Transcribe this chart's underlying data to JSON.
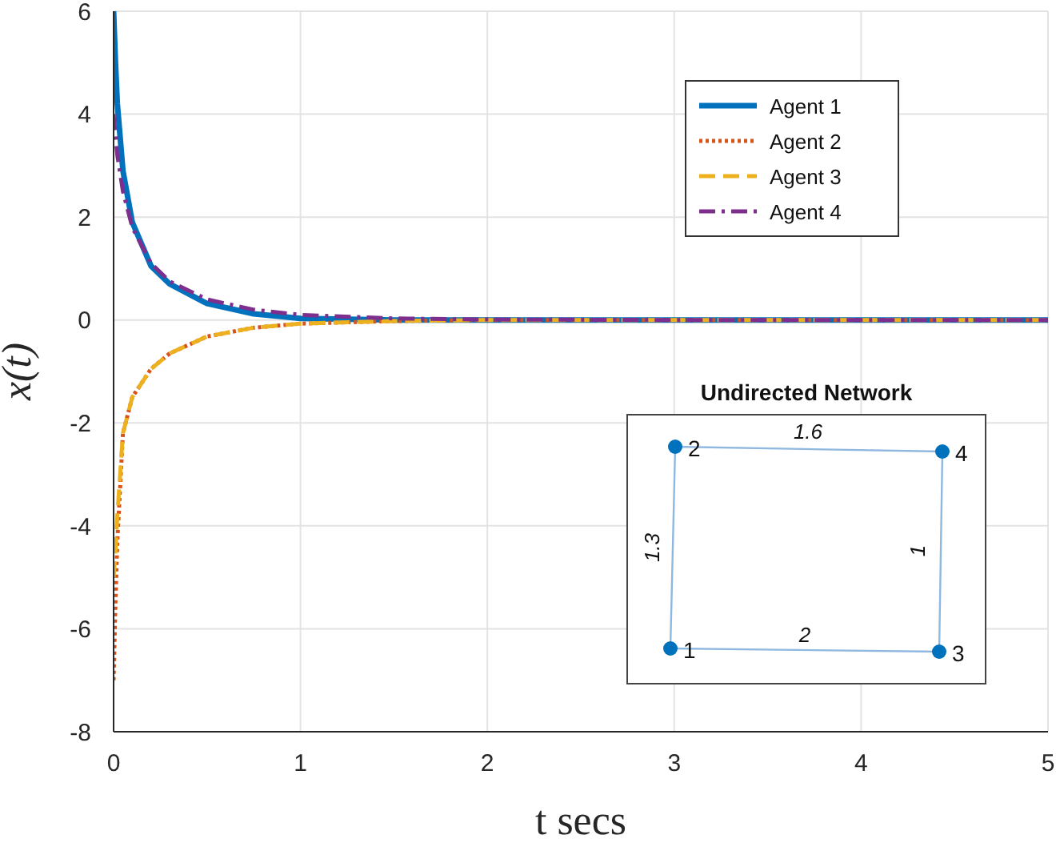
{
  "chart_data": {
    "type": "line",
    "xlabel": "t secs",
    "ylabel": "x(t)",
    "x": [
      0,
      0.01,
      0.02,
      0.05,
      0.1,
      0.2,
      0.3,
      0.5,
      0.75,
      1,
      1.5,
      2,
      3,
      4,
      5
    ],
    "series": [
      {
        "name": "Agent 1",
        "color": "#0072bd",
        "line_style": "solid",
        "values": [
          6,
          5.0,
          4.2,
          2.9,
          1.9,
          1.05,
          0.7,
          0.32,
          0.12,
          0.03,
          0,
          0,
          0,
          0,
          0
        ]
      },
      {
        "name": "Agent 2",
        "color": "#d95319",
        "line_style": "dotted",
        "values": [
          -7,
          -5.5,
          -4.3,
          -2.2,
          -1.5,
          -0.95,
          -0.65,
          -0.32,
          -0.15,
          -0.07,
          -0.02,
          0,
          0,
          0,
          0
        ]
      },
      {
        "name": "Agent 3",
        "color": "#edb120",
        "line_style": "dashed",
        "values": [
          -5,
          -4.5,
          -3.8,
          -2.2,
          -1.5,
          -0.95,
          -0.65,
          -0.32,
          -0.15,
          -0.07,
          -0.02,
          0,
          0,
          0,
          0
        ]
      },
      {
        "name": "Agent 4",
        "color": "#7e2f8e",
        "line_style": "dashdot",
        "values": [
          4,
          3.6,
          3.2,
          2.5,
          1.8,
          1.1,
          0.75,
          0.4,
          0.2,
          0.1,
          0.03,
          0.01,
          0,
          0,
          0
        ]
      }
    ],
    "xlim": [
      0,
      5
    ],
    "xticks": [
      0,
      1,
      2,
      3,
      4,
      5
    ],
    "ylim": [
      -8,
      6
    ],
    "yticks": [
      -8,
      -6,
      -4,
      -2,
      0,
      2,
      4,
      6
    ],
    "grid": true,
    "legend": "top right",
    "marker": "none",
    "annotations": [
      "Undirected Network",
      "1",
      "2",
      "3",
      "4",
      "1.6",
      "1.3",
      "1",
      "2"
    ]
  }
}
